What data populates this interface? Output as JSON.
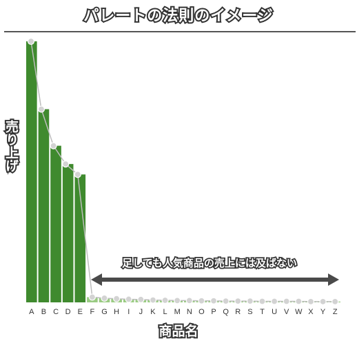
{
  "chart_data": {
    "type": "bar",
    "title": "パレートの法則のイメージ",
    "xlabel": "商品名",
    "ylabel": "売り上げ",
    "categories": [
      "A",
      "B",
      "C",
      "D",
      "E",
      "F",
      "G",
      "H",
      "I",
      "J",
      "K",
      "L",
      "M",
      "N",
      "O",
      "P",
      "Q",
      "R",
      "S",
      "T",
      "U",
      "V",
      "W",
      "X",
      "Y",
      "Z"
    ],
    "values": [
      100,
      74,
      60,
      53,
      49,
      2,
      1.6,
      1.4,
      1.2,
      1.1,
      0.9,
      0.8,
      0.7,
      0.7,
      0.6,
      0.6,
      0.5,
      0.5,
      0.5,
      0.4,
      0.4,
      0.4,
      0.4,
      0.3,
      0.3,
      0.3
    ],
    "ylim": [
      0,
      100
    ],
    "grid": false,
    "legend": "none",
    "annotation": "足しても人気商品の売上には及ばない",
    "colors": {
      "bar": "#3f8a2e",
      "bar_tail": "#9acb83",
      "line": "#bdbdbd",
      "marker_fill": "#d3d3d3",
      "marker_stroke": "#ffffff",
      "arrow": "#4a4a4a",
      "rule": "#555555"
    }
  }
}
